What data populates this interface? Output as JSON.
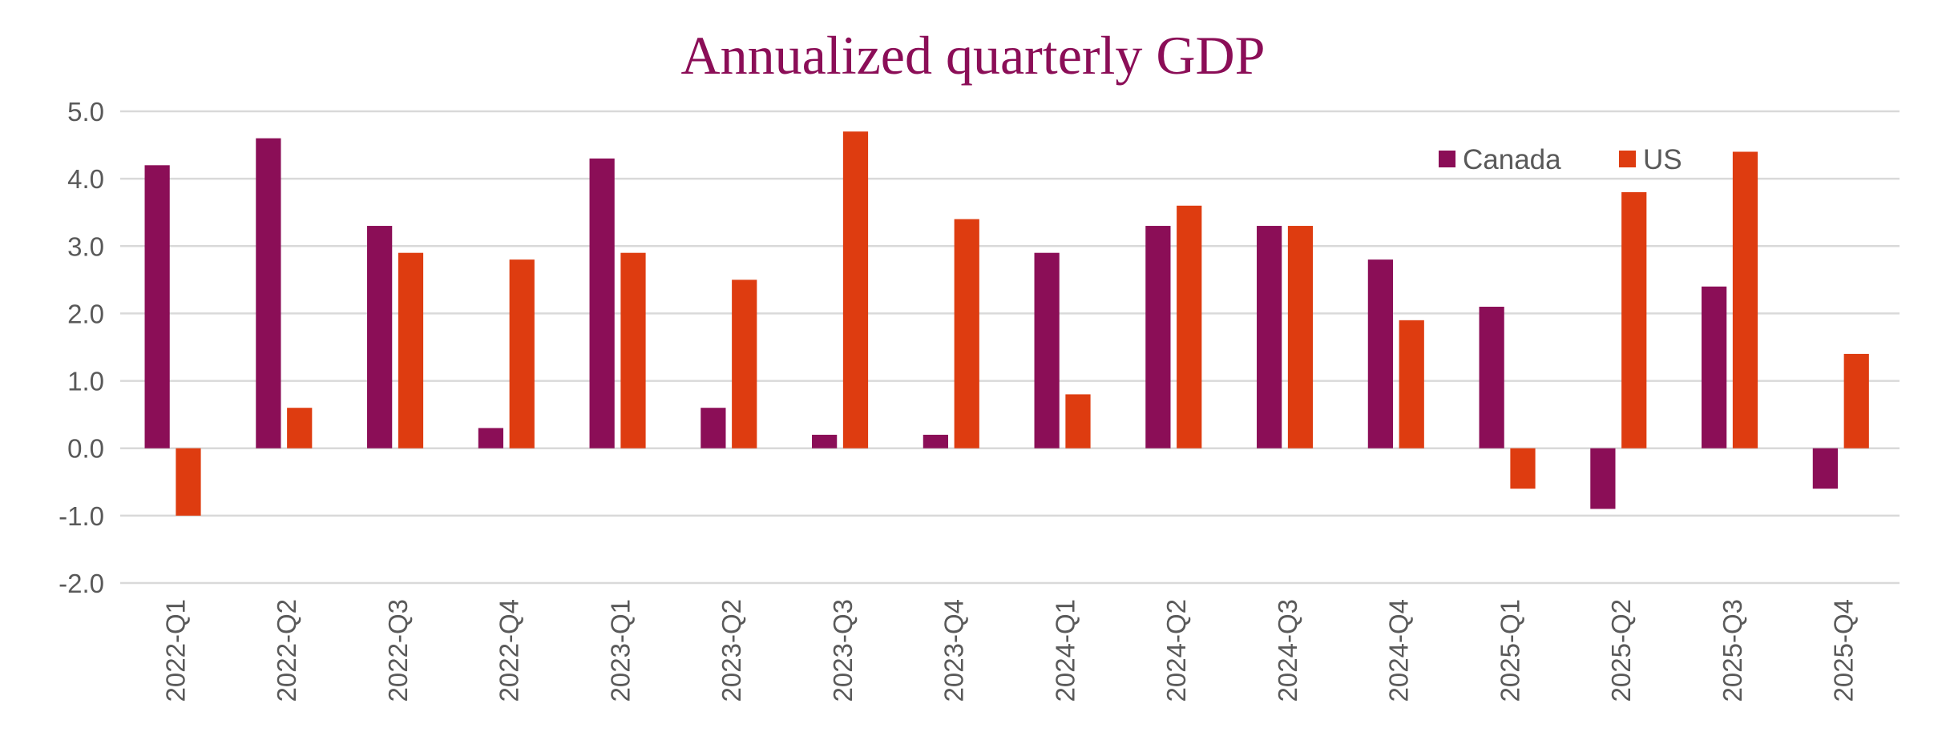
{
  "chart_data": {
    "type": "bar",
    "title": "Annualized quarterly GDP",
    "xlabel": "",
    "ylabel": "",
    "ylim": [
      -2.0,
      5.0
    ],
    "yticks": [
      "5.0",
      "4.0",
      "3.0",
      "2.0",
      "1.0",
      "0.0",
      "-1.0",
      "-2.0"
    ],
    "grid": true,
    "legend": "top-right",
    "categories": [
      "2022-Q1",
      "2022-Q2",
      "2022-Q3",
      "2022-Q4",
      "2023-Q1",
      "2023-Q2",
      "2023-Q3",
      "2023-Q4",
      "2024-Q1",
      "2024-Q2",
      "2024-Q3",
      "2024-Q4",
      "2025-Q1",
      "2025-Q2",
      "2025-Q3",
      "2025-Q4"
    ],
    "series": [
      {
        "name": "Canada",
        "color": "#8B0E57",
        "values": [
          4.2,
          4.6,
          3.3,
          0.3,
          4.3,
          0.6,
          0.2,
          0.2,
          2.9,
          3.3,
          3.3,
          2.8,
          2.1,
          -0.9,
          2.4,
          -0.6
        ]
      },
      {
        "name": "US",
        "color": "#DE3C10",
        "values": [
          -1.0,
          0.6,
          2.9,
          2.8,
          2.9,
          2.5,
          4.7,
          3.4,
          0.8,
          3.6,
          3.3,
          1.9,
          -0.6,
          3.8,
          4.4,
          1.4
        ]
      }
    ]
  }
}
